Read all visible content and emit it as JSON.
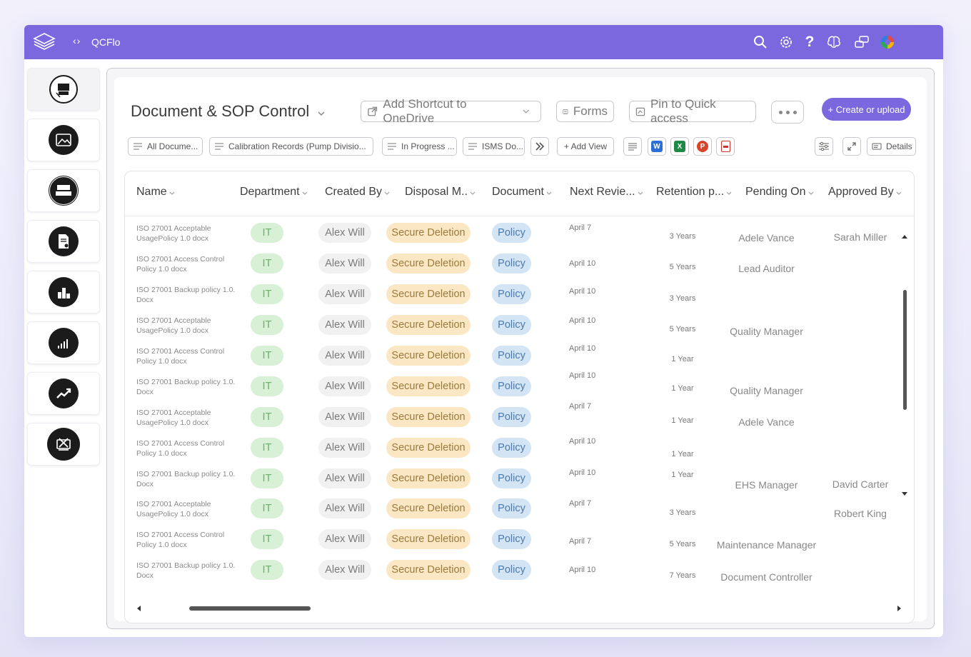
{
  "app": {
    "name": "QCFlo"
  },
  "topbar": {
    "icons": [
      "search-icon",
      "gear-icon",
      "help-icon",
      "brain-icon",
      "chat-icon",
      "color-wheel-icon"
    ]
  },
  "sidebar": {
    "items": [
      "iso-9001-icon",
      "image-icon",
      "iso-27001-icon",
      "doc-settings-icon",
      "bar-chart-icon",
      "signal-chart-icon",
      "trend-icon",
      "tools-icon"
    ]
  },
  "page": {
    "title": "Document & SOP Control",
    "shortcut_label": "Add Shortcut to OneDrive",
    "forms_label": "Forms",
    "pin_label": "Pin to Quick access",
    "create_label": "+ Create or upload"
  },
  "views": [
    "All Docume...",
    "Calibration Records (Pump Divisio...",
    "In Progress ...",
    "ISMS Do..."
  ],
  "add_view_label": "+ Add View",
  "details_label": "Details",
  "colors": {
    "accent": "#7b68df",
    "it_bg": "#d7f0d6",
    "disposal_bg": "#fbe7c4",
    "doc_bg": "#d3e5f5"
  },
  "columns": [
    "Name",
    "Department",
    "Created By",
    "Disposal M..",
    "Document",
    "Next Revie...",
    "Retention p...",
    "Pending On",
    "Approved By"
  ],
  "rows": [
    {
      "name": "ISO 27001 Acceptable UsagePolicy 1.0 docx",
      "dept": "IT",
      "created": "Alex Will",
      "disposal": "Secure Deletion",
      "doc": "Policy",
      "review": "April 7",
      "retention": "3 Years",
      "pending": "Adele Vance",
      "approved": "Sarah Miller"
    },
    {
      "name": "ISO 27001 Access Control Policy 1.0 docx",
      "dept": "IT",
      "created": "Alex Will",
      "disposal": "Secure Deletion",
      "doc": "Policy",
      "review": "April 10",
      "retention": "5 Years",
      "pending": "Lead Auditor",
      "approved": ""
    },
    {
      "name": "ISO 27001 Backup policy 1.0. Docx",
      "dept": "IT",
      "created": "Alex Will",
      "disposal": "Secure Deletion",
      "doc": "Policy",
      "review": "April 10",
      "retention": "3 Years",
      "pending": "",
      "approved": ""
    },
    {
      "name": "ISO 27001 Acceptable UsagePolicy 1.0 docx",
      "dept": "IT",
      "created": "Alex Will",
      "disposal": "Secure Deletion",
      "doc": "Policy",
      "review": "April 10",
      "retention": "5 Years",
      "pending": "Quality Manager",
      "approved": ""
    },
    {
      "name": "ISO 27001 Access Control Policy 1.0 docx",
      "dept": "IT",
      "created": "Alex Will",
      "disposal": "Secure Deletion",
      "doc": "Policy",
      "review": "April 10",
      "retention": "1 Year",
      "pending": "",
      "approved": ""
    },
    {
      "name": "ISO 27001 Backup policy 1.0. Docx",
      "dept": "IT",
      "created": "Alex Will",
      "disposal": "Secure Deletion",
      "doc": "Policy",
      "review": "April 10",
      "retention": "1 Year",
      "pending": "Quality Manager",
      "approved": ""
    },
    {
      "name": "ISO 27001 Acceptable UsagePolicy 1.0 docx",
      "dept": "IT",
      "created": "Alex Will",
      "disposal": "Secure Deletion",
      "doc": "Policy",
      "review": "April 7",
      "retention": "1 Year",
      "pending": "Adele Vance",
      "approved": ""
    },
    {
      "name": "ISO 27001 Access Control Policy 1.0 docx",
      "dept": "IT",
      "created": "Alex Will",
      "disposal": "Secure Deletion",
      "doc": "Policy",
      "review": "April 10",
      "retention": "1 Year",
      "pending": "",
      "approved": ""
    },
    {
      "name": "ISO 27001 Backup policy 1.0. Docx",
      "dept": "IT",
      "created": "Alex Will",
      "disposal": "Secure Deletion",
      "doc": "Policy",
      "review": "April 10",
      "retention": "1 Year",
      "pending": "EHS Manager",
      "approved": "David Carter"
    },
    {
      "name": "ISO 27001 Acceptable UsagePolicy 1.0 docx",
      "dept": "IT",
      "created": "Alex Will",
      "disposal": "Secure Deletion",
      "doc": "Policy",
      "review": "April 7",
      "retention": "3 Years",
      "pending": "",
      "approved": "Robert King"
    },
    {
      "name": "ISO 27001 Access Control Policy 1.0 docx",
      "dept": "IT",
      "created": "Alex Will",
      "disposal": "Secure Deletion",
      "doc": "Policy",
      "review": "April 7",
      "retention": "5 Years",
      "pending": "Maintenance Manager",
      "approved": ""
    },
    {
      "name": "ISO 27001 Backup policy 1.0. Docx",
      "dept": "IT",
      "created": "Alex Will",
      "disposal": "Secure Deletion",
      "doc": "Policy",
      "review": "April 10",
      "retention": "7 Years",
      "pending": "Document Controller",
      "approved": ""
    }
  ]
}
